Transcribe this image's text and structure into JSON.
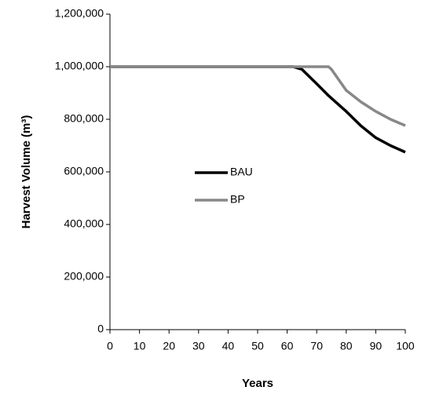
{
  "chart_data": {
    "type": "line",
    "x_label": "Years",
    "y_label": "Harvest Volume (m³)",
    "x": [
      0,
      5,
      10,
      15,
      20,
      25,
      30,
      35,
      40,
      45,
      50,
      55,
      60,
      62,
      65,
      70,
      74,
      75,
      80,
      85,
      90,
      95,
      100
    ],
    "series": [
      {
        "name": "BAU",
        "color": "#000000",
        "values": [
          1000000,
          1000000,
          1000000,
          1000000,
          1000000,
          1000000,
          1000000,
          1000000,
          1000000,
          1000000,
          1000000,
          1000000,
          1000000,
          1000000,
          990000,
          935000,
          890000,
          880000,
          830000,
          775000,
          730000,
          700000,
          675000
        ]
      },
      {
        "name": "BP",
        "color": "#888888",
        "values": [
          1000000,
          1000000,
          1000000,
          1000000,
          1000000,
          1000000,
          1000000,
          1000000,
          1000000,
          1000000,
          1000000,
          1000000,
          1000000,
          1000000,
          1000000,
          1000000,
          1000000,
          990000,
          910000,
          866000,
          830000,
          800000,
          776000
        ]
      }
    ],
    "xlim": [
      0,
      100
    ],
    "xticks": [
      0,
      10,
      20,
      30,
      40,
      50,
      60,
      70,
      80,
      90,
      100
    ],
    "ylim": [
      0,
      1200000
    ],
    "yticks": [
      0,
      {
        "value": 200000,
        "label": "200,000"
      },
      {
        "value": 400000,
        "label": "400,000"
      },
      {
        "value": 600000,
        "label": "600,000"
      },
      {
        "value": 800000,
        "label": "800,000"
      },
      {
        "value": 1000000,
        "label": "1,000,000"
      },
      {
        "value": 1200000,
        "label": "1,200,000"
      }
    ],
    "grid": false,
    "legend": "center"
  }
}
